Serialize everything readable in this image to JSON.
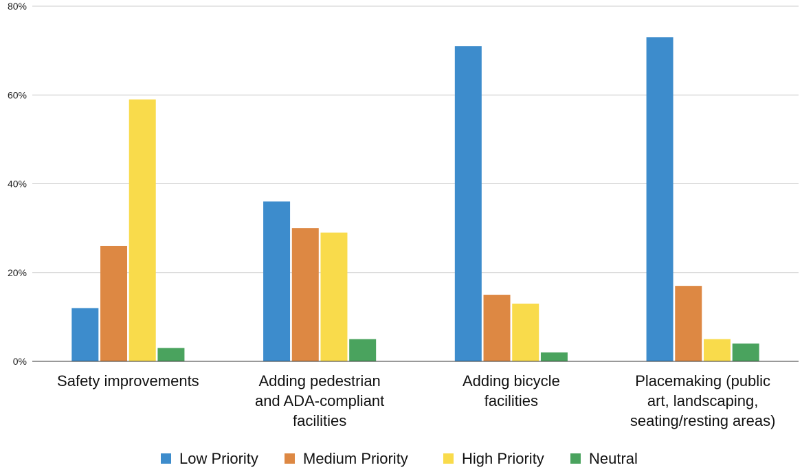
{
  "chart_data": {
    "type": "bar",
    "title": "",
    "xlabel": "",
    "ylabel": "",
    "ylim": [
      0,
      80
    ],
    "y_ticks": [
      0,
      20,
      40,
      60,
      80
    ],
    "y_tick_labels": [
      "0%",
      "20%",
      "40%",
      "60%",
      "80%"
    ],
    "grid": true,
    "legend_position": "bottom",
    "categories": [
      [
        "Safety improvements"
      ],
      [
        "Adding pedestrian",
        "and ADA-compliant",
        "facilities"
      ],
      [
        "Adding bicycle",
        "facilities"
      ],
      [
        "Placemaking (public",
        "art, landscaping,",
        "seating/resting areas)"
      ]
    ],
    "series": [
      {
        "name": "Low Priority",
        "color": "#3d8ccc",
        "values": [
          12,
          36,
          71,
          73
        ]
      },
      {
        "name": "Medium Priority",
        "color": "#dd8843",
        "values": [
          26,
          30,
          15,
          17
        ]
      },
      {
        "name": "High Priority",
        "color": "#f9db4b",
        "values": [
          59,
          29,
          13,
          5
        ]
      },
      {
        "name": "Neutral",
        "color": "#4aa35e",
        "values": [
          3,
          5,
          2,
          4
        ]
      }
    ]
  }
}
